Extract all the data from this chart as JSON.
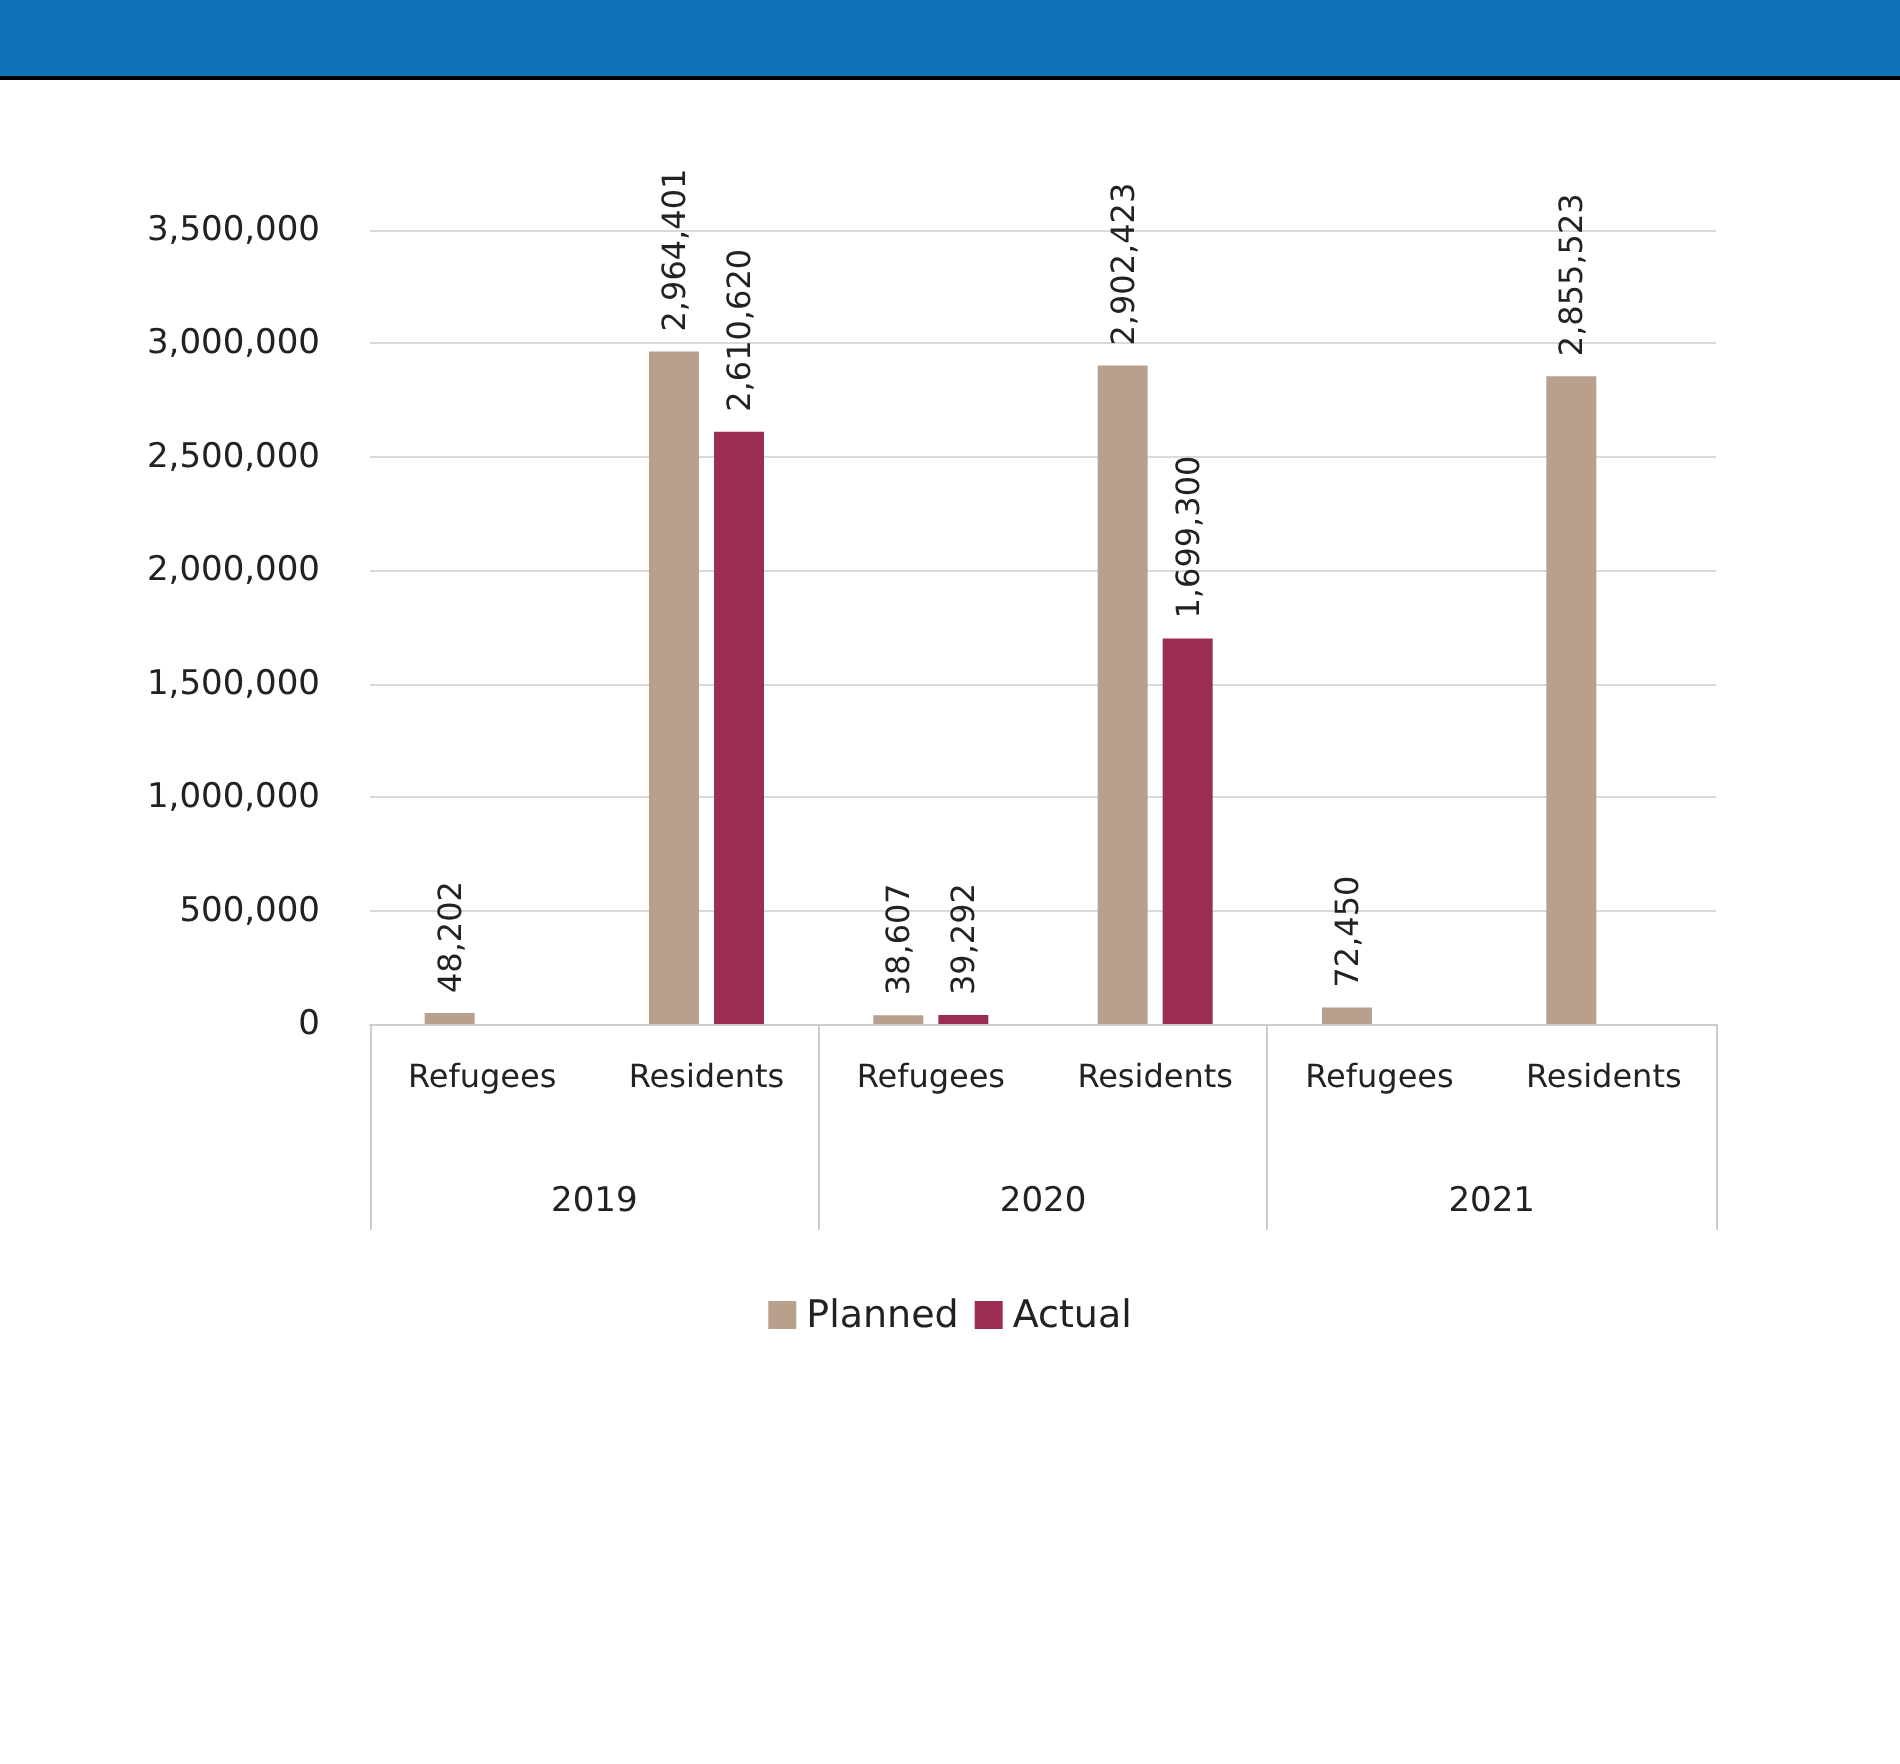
{
  "chart_data": {
    "type": "bar",
    "categories": [
      "Refugees",
      "Residents",
      "Refugees",
      "Residents",
      "Refugees",
      "Residents"
    ],
    "series": [
      {
        "name": "Planned",
        "color": "#b8a08c",
        "values": [
          48202,
          2964401,
          38607,
          2902423,
          72450,
          2855523
        ],
        "value_labels": [
          "48,202",
          "2,964,401",
          "38,607",
          "2,902,423",
          "72,450",
          "2,855,523"
        ]
      },
      {
        "name": "Actual",
        "color": "#9b2d53",
        "values": [
          null,
          2610620,
          39292,
          1699300,
          null,
          null
        ],
        "value_labels": [
          null,
          "2,610,620",
          "39,292",
          "1,699,300",
          null,
          null
        ]
      }
    ],
    "annotations": [
      "2019",
      "2020",
      "2021"
    ],
    "ylim": [
      0,
      3500000
    ],
    "yticks": [
      0,
      {
        "value": 500000,
        "label": "500,000"
      },
      {
        "value": 1000000,
        "label": "1,000,000"
      },
      {
        "value": 1500000,
        "label": "1,500,000"
      },
      {
        "value": 2000000,
        "label": "2,000,000"
      },
      {
        "value": 2500000,
        "label": "2,500,000"
      },
      {
        "value": 3000000,
        "label": "3,000,000"
      },
      {
        "value": 3500000,
        "label": "3,500,000"
      }
    ],
    "grid": "y",
    "legend": "bottom"
  }
}
